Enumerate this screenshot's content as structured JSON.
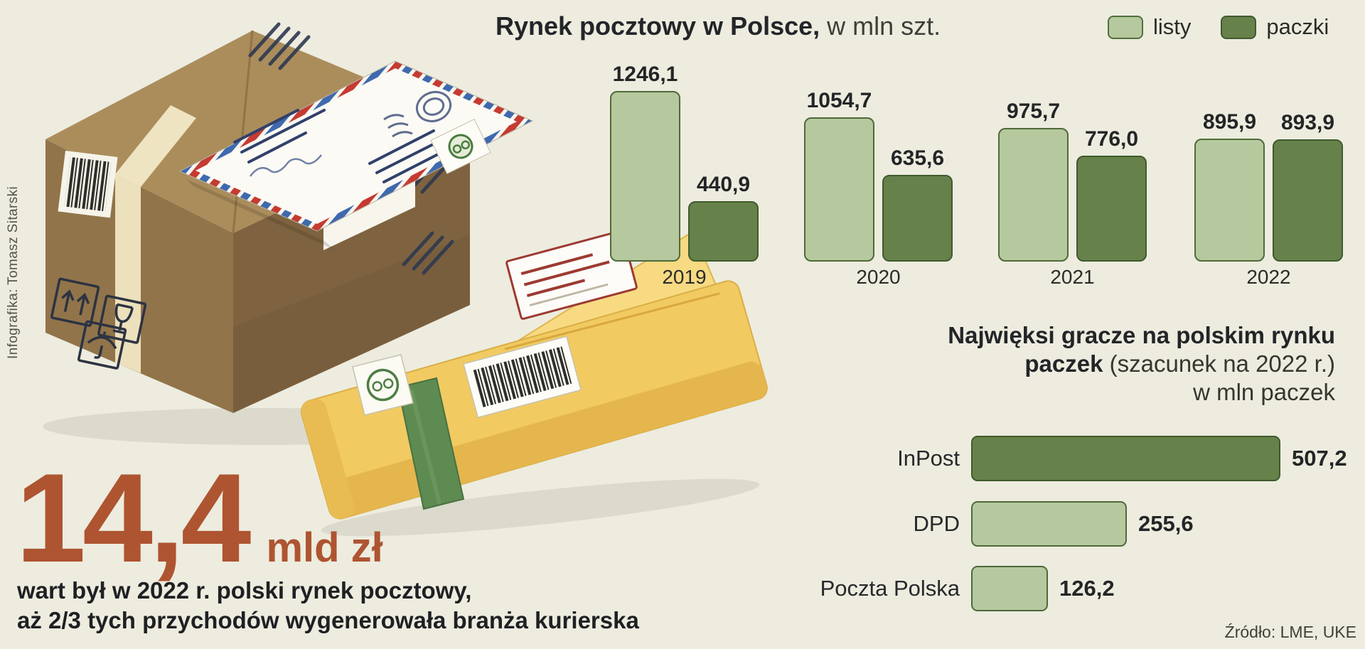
{
  "credit": "Infografika: Tomasz Sitarski",
  "source": "Źródło: LME, UKE",
  "colors": {
    "background": "#edecdf",
    "light_green": "#b6c89d",
    "dark_green": "#66814a",
    "accent_red": "#ae5431",
    "text_dark": "#26272a"
  },
  "chart_data": [
    {
      "type": "bar",
      "title_bold": "Rynek pocztowy w Polsce,",
      "title_rest": " w mln szt.",
      "categories": [
        "2019",
        "2020",
        "2021",
        "2022"
      ],
      "series": [
        {
          "name": "listy",
          "color": "light",
          "values": [
            1246.1,
            1054.7,
            975.7,
            895.9
          ],
          "labels": [
            "1246,1",
            "1054,7",
            "975,7",
            "895,9"
          ]
        },
        {
          "name": "paczki",
          "color": "dark",
          "values": [
            440.9,
            635.6,
            776.0,
            893.9
          ],
          "labels": [
            "440,9",
            "635,6",
            "776,0",
            "893,9"
          ]
        }
      ],
      "legend_position": "top-right",
      "grid": false,
      "ylim": [
        0,
        1246.1
      ]
    },
    {
      "type": "bar-horizontal",
      "title_line1": "Najwięksi gracze na polskim rynku",
      "title_line2_bold": "paczek",
      "title_line2_rest": " (szacunek na 2022 r.)",
      "title_line3": "w mln paczek",
      "rows": [
        {
          "label": "InPost",
          "value": 507.2,
          "display": "507,2",
          "color": "dark"
        },
        {
          "label": "DPD",
          "value": 255.6,
          "display": "255,6",
          "color": "light"
        },
        {
          "label": "Poczta Polska",
          "value": 126.2,
          "display": "126,2",
          "color": "light"
        }
      ],
      "xlim": [
        0,
        507.2
      ]
    }
  ],
  "headline": {
    "big": "14,4",
    "unit": "mld zł",
    "line1": "wart był w 2022 r. polski rynek pocztowy,",
    "line2": "aż 2/3 tych przychodów wygenerowała branża kurierska"
  }
}
